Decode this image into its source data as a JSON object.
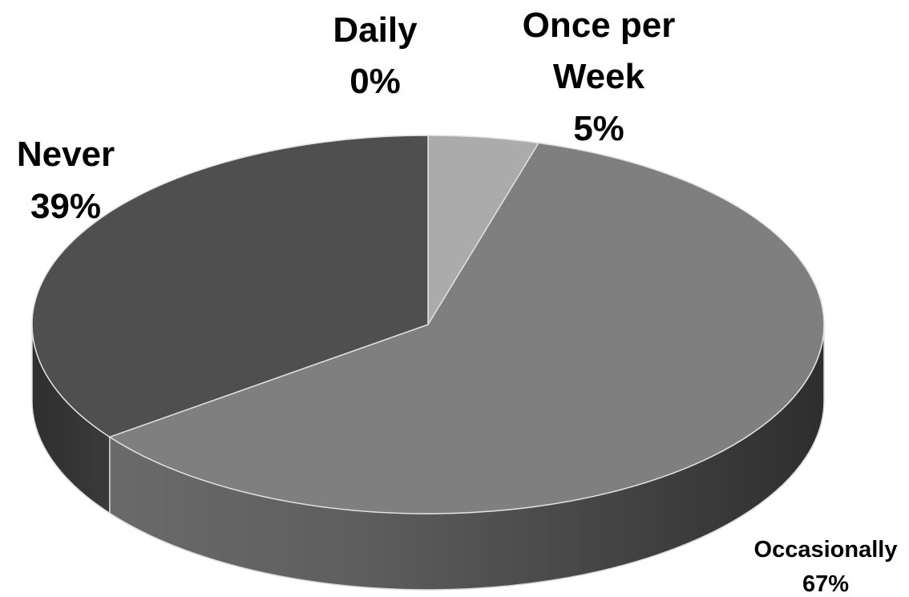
{
  "chart_data": {
    "type": "pie",
    "style": "3d",
    "title": "",
    "slices": [
      {
        "label": "Daily",
        "percent_label": "0%",
        "value": 0,
        "color": "#bdbdbd"
      },
      {
        "label": "Once per Week",
        "label_lines": [
          "Once per",
          "Week"
        ],
        "percent_label": "5%",
        "value": 5,
        "color": "#ababab"
      },
      {
        "label": "Occasionally",
        "percent_label": "67%",
        "value": 67,
        "color": "#7f7f7f"
      },
      {
        "label": "Never",
        "percent_label": "39%",
        "value": 39,
        "color": "#4f4f4f"
      }
    ],
    "legend": "none"
  }
}
